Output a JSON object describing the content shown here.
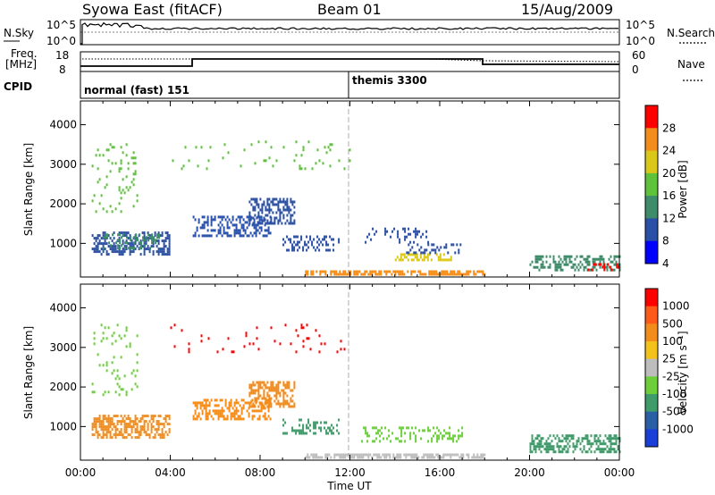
{
  "header": {
    "title": "Syowa East (fitACF)",
    "beam": "Beam 01",
    "date": "15/Aug/2009"
  },
  "summary_panels": {
    "nsky_label": "N.Sky",
    "nsky_ticks": [
      "10^5",
      "10^0"
    ],
    "nsearch_label": "N.Search",
    "nsearch_ticks": [
      "10^5",
      "10^0"
    ],
    "freq_label": "Freq.",
    "freq_unit": "[MHz]",
    "freq_ticks": [
      "18",
      "8"
    ],
    "nave_label": "Nave",
    "nave_ticks": [
      "60",
      "0"
    ],
    "cpid_label": "CPID",
    "cpid_modes": [
      {
        "name": "normal (fast) 151",
        "start_hour": 0
      },
      {
        "name": "themis 3300",
        "start_hour": 12
      }
    ]
  },
  "chart_data": [
    {
      "type": "heatmap",
      "name": "Power",
      "ylabel": "Slant Range [km]",
      "xlabel": "Time UT",
      "xlim_hours": [
        0,
        24
      ],
      "ylim": [
        150,
        4600
      ],
      "yticks": [
        "1000",
        "2000",
        "3000",
        "4000"
      ],
      "xticks": [
        "00:00",
        "04:00",
        "08:00",
        "12:00",
        "16:00",
        "20:00",
        "00:00"
      ],
      "colorbar": {
        "label": "Power [dB]",
        "ticks": [
          "4",
          "8",
          "12",
          "16",
          "20",
          "24",
          "28"
        ],
        "colors": [
          "#0000ff",
          "#2a4fa6",
          "#3f8c6a",
          "#5ec23b",
          "#d9c81a",
          "#f28c1a",
          "#ff0000"
        ]
      },
      "patches": [
        {
          "t": [
            0.5,
            4.0
          ],
          "r": [
            700,
            1300
          ],
          "color": "#2a4fa6",
          "density": 0.5
        },
        {
          "t": [
            1.0,
            3.5
          ],
          "r": [
            900,
            1250
          ],
          "color": "#3f8c6a",
          "density": 0.35
        },
        {
          "t": [
            5.0,
            8.5
          ],
          "r": [
            1200,
            1700
          ],
          "color": "#2a4fa6",
          "density": 0.45
        },
        {
          "t": [
            7.5,
            9.5
          ],
          "r": [
            1500,
            2150
          ],
          "color": "#2a4fa6",
          "density": 0.5
        },
        {
          "t": [
            9.0,
            11.5
          ],
          "r": [
            800,
            1200
          ],
          "color": "#2a4fa6",
          "density": 0.35
        },
        {
          "t": [
            12.5,
            15.5
          ],
          "r": [
            1000,
            1400
          ],
          "color": "#2a4fa6",
          "density": 0.2
        },
        {
          "t": [
            14.0,
            16.5
          ],
          "r": [
            550,
            750
          ],
          "color": "#d9c81a",
          "density": 0.5
        },
        {
          "t": [
            14.5,
            17.0
          ],
          "r": [
            750,
            1000
          ],
          "color": "#2a4fa6",
          "density": 0.3
        },
        {
          "t": [
            10.0,
            18.0
          ],
          "r": [
            200,
            320
          ],
          "color": "#f28c1a",
          "density": 0.65
        },
        {
          "t": [
            20.0,
            24.0
          ],
          "r": [
            350,
            700
          ],
          "color": "#3f8c6a",
          "density": 0.5
        },
        {
          "t": [
            22.5,
            24.0
          ],
          "r": [
            300,
            500
          ],
          "color": "#ff0000",
          "density": 0.35
        },
        {
          "t": [
            0.5,
            2.5
          ],
          "r": [
            1800,
            3600
          ],
          "color": "#5ec23b",
          "density": 0.1
        },
        {
          "t": [
            4.0,
            12.0
          ],
          "r": [
            2900,
            3600
          ],
          "color": "#5ec23b",
          "density": 0.05
        }
      ]
    },
    {
      "type": "heatmap",
      "name": "Velocity",
      "ylabel": "Slant Range [km]",
      "xlabel": "Time UT",
      "xlim_hours": [
        0,
        24
      ],
      "ylim": [
        150,
        4600
      ],
      "yticks": [
        "1000",
        "2000",
        "3000",
        "4000"
      ],
      "xticks": [
        "00:00",
        "04:00",
        "08:00",
        "12:00",
        "16:00",
        "20:00",
        "00:00"
      ],
      "colorbar": {
        "label": "Velocity [m s⁻¹]",
        "ticks": [
          "1000",
          "500",
          "100",
          "25",
          "-25",
          "-100",
          "-500",
          "-1000"
        ],
        "colors": [
          "#1a3fd9",
          "#2a5fa6",
          "#3f9c6a",
          "#6ccf3a",
          "#bdbdbd",
          "#f2c21a",
          "#f28c1a",
          "#ff5a1a",
          "#ff0000"
        ]
      },
      "patches": [
        {
          "t": [
            0.5,
            4.0
          ],
          "r": [
            700,
            1300
          ],
          "color": "#f28c1a",
          "density": 0.55
        },
        {
          "t": [
            5.0,
            8.5
          ],
          "r": [
            1200,
            1700
          ],
          "color": "#f28c1a",
          "density": 0.5
        },
        {
          "t": [
            7.5,
            9.5
          ],
          "r": [
            1500,
            2150
          ],
          "color": "#f28c1a",
          "density": 0.55
        },
        {
          "t": [
            9.0,
            11.5
          ],
          "r": [
            800,
            1200
          ],
          "color": "#3f9c6a",
          "density": 0.3
        },
        {
          "t": [
            10.0,
            18.0
          ],
          "r": [
            200,
            320
          ],
          "color": "#bdbdbd",
          "density": 0.65
        },
        {
          "t": [
            12.5,
            17.0
          ],
          "r": [
            600,
            1000
          ],
          "color": "#6ccf3a",
          "density": 0.3
        },
        {
          "t": [
            20.0,
            24.0
          ],
          "r": [
            350,
            800
          ],
          "color": "#3f9c6a",
          "density": 0.5
        },
        {
          "t": [
            0.5,
            2.5
          ],
          "r": [
            1800,
            3600
          ],
          "color": "#6ccf3a",
          "density": 0.08
        },
        {
          "t": [
            4.0,
            12.0
          ],
          "r": [
            2900,
            3600
          ],
          "color": "#ff0000",
          "density": 0.05
        }
      ]
    }
  ]
}
